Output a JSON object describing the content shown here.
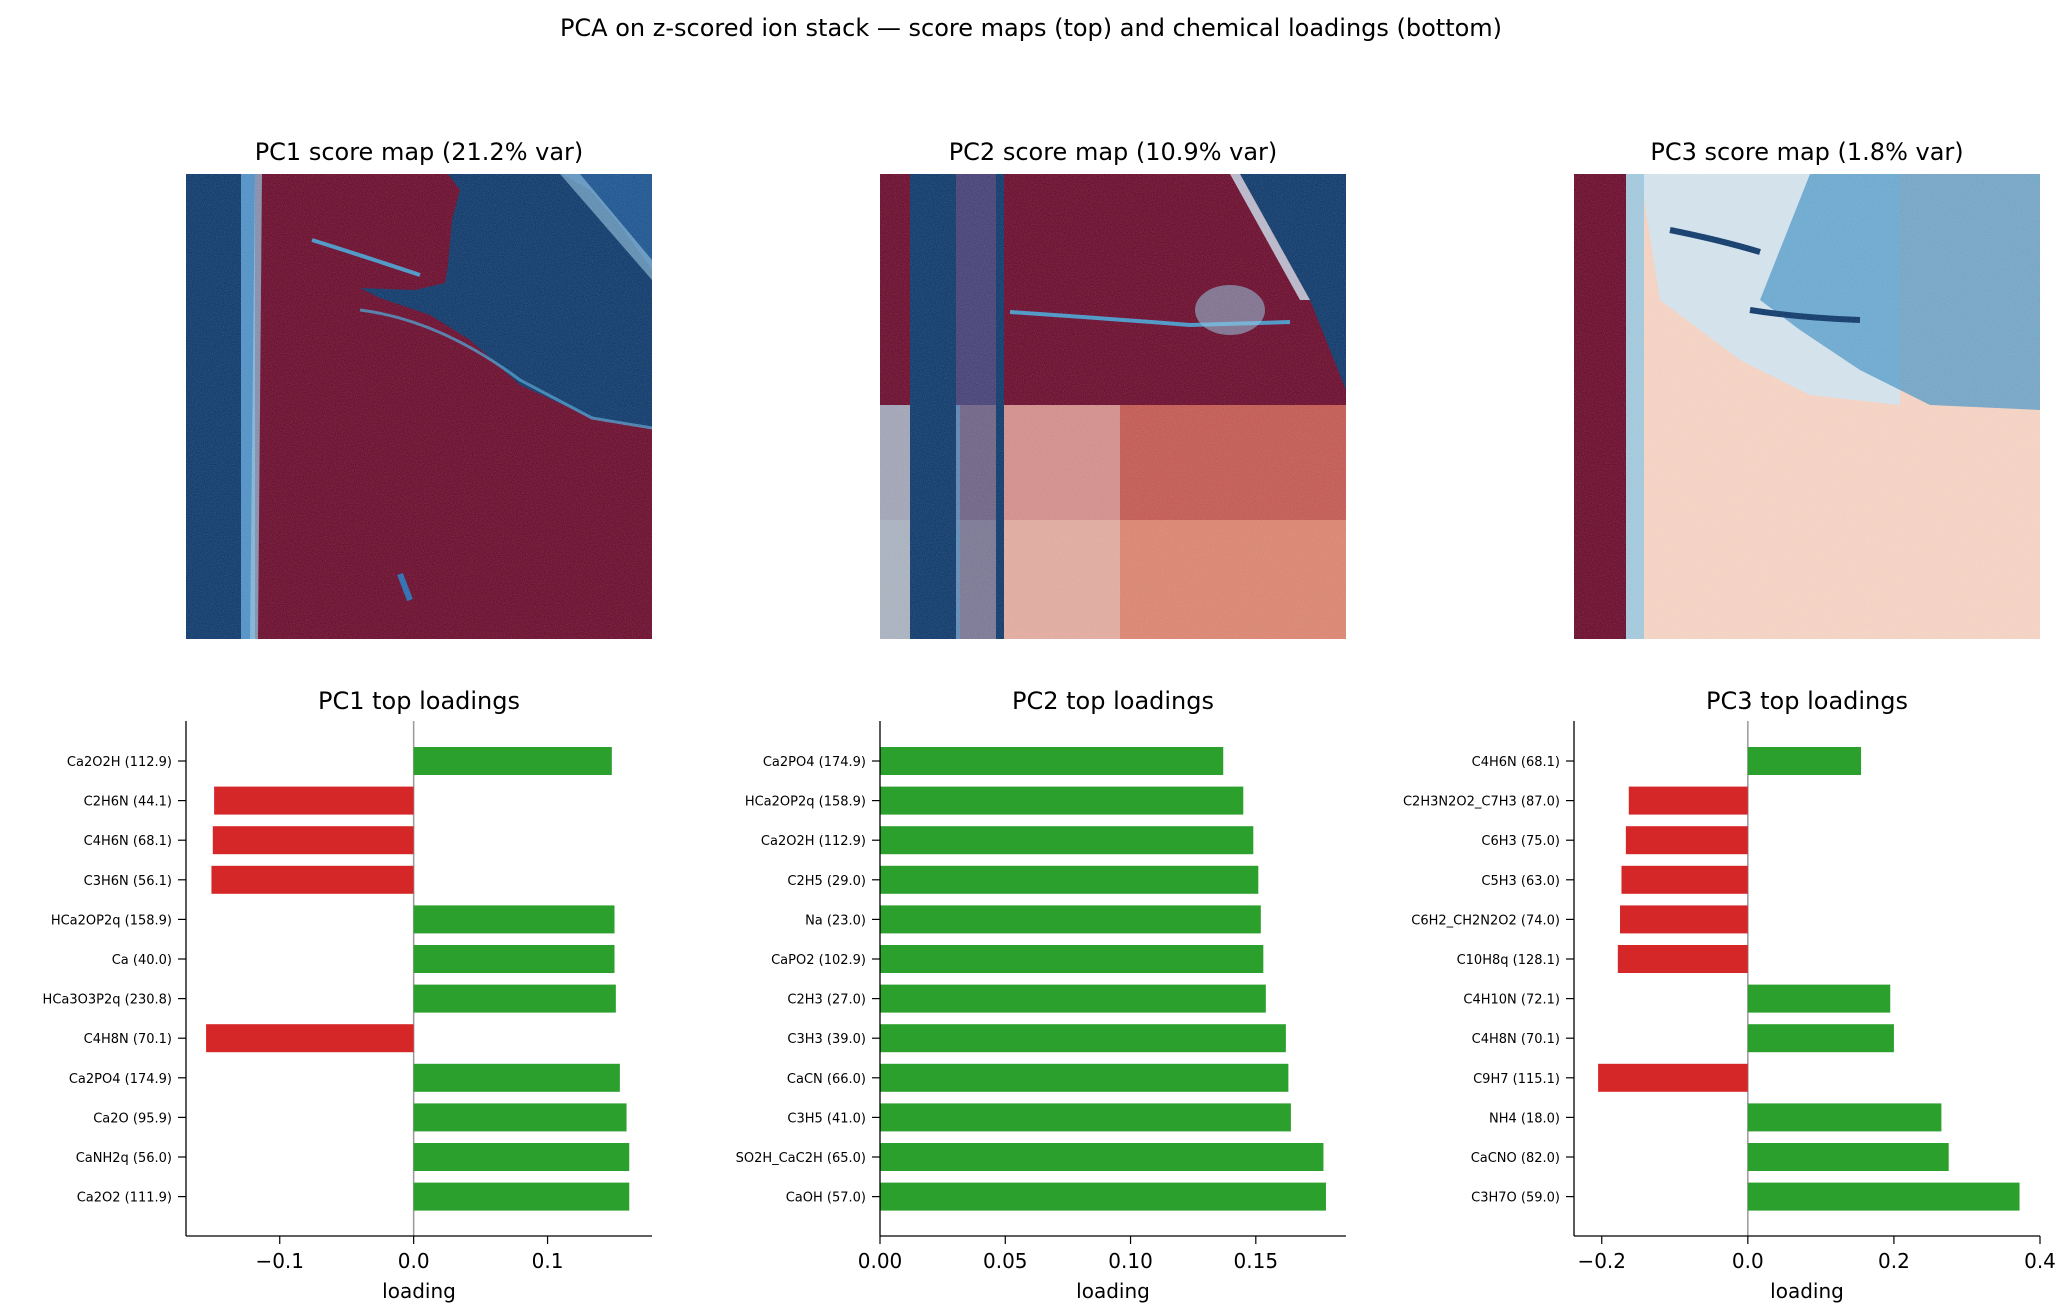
{
  "figure": {
    "suptitle": "PCA on z-scored ion stack — score maps (top) and chemical loadings (bottom)"
  },
  "colors": {
    "positive": "#2ca02c",
    "negative": "#d62728",
    "map_red": "#67001f",
    "map_blue": "#053061",
    "map_light": "#f7f7f7"
  },
  "score_maps": [
    {
      "title": "PC1 score map  (21.2% var)",
      "colormap": "RdBu"
    },
    {
      "title": "PC2 score map  (10.9% var)",
      "colormap": "RdBu"
    },
    {
      "title": "PC3 score map  (1.8% var)",
      "colormap": "RdBu"
    }
  ],
  "chart_data": [
    {
      "type": "bar",
      "orientation": "horizontal",
      "title": "PC1 top loadings",
      "xlabel": "loading",
      "xlim": [
        -0.17,
        0.178
      ],
      "xticks": [
        -0.1,
        0.0,
        0.1
      ],
      "xtick_labels": [
        "−0.1",
        "0.0",
        "0.1"
      ],
      "categories": [
        "Ca2O2H (112.9)",
        "C2H6N (44.1)",
        "C4H6N (68.1)",
        "C3H6N (56.1)",
        "HCa2OP2q (158.9)",
        "Ca (40.0)",
        "HCa3O3P2q (230.8)",
        "C4H8N (70.1)",
        "Ca2PO4 (174.9)",
        "Ca2O (95.9)",
        "CaNH2q (56.0)",
        "Ca2O2 (111.9)"
      ],
      "values": [
        0.148,
        -0.149,
        -0.15,
        -0.151,
        0.15,
        0.15,
        0.151,
        -0.155,
        0.154,
        0.159,
        0.161,
        0.161
      ]
    },
    {
      "type": "bar",
      "orientation": "horizontal",
      "title": "PC2 top loadings",
      "xlabel": "loading",
      "xlim": [
        0.0,
        0.186
      ],
      "xticks": [
        0.0,
        0.05,
        0.1,
        0.15
      ],
      "xtick_labels": [
        "0.00",
        "0.05",
        "0.10",
        "0.15"
      ],
      "categories": [
        "Ca2PO4 (174.9)",
        "HCa2OP2q (158.9)",
        "Ca2O2H (112.9)",
        "C2H5 (29.0)",
        "Na (23.0)",
        "CaPO2 (102.9)",
        "C2H3 (27.0)",
        "C3H3 (39.0)",
        "CaCN (66.0)",
        "C3H5 (41.0)",
        "SO2H_CaC2H (65.0)",
        "CaOH (57.0)"
      ],
      "values": [
        0.137,
        0.145,
        0.149,
        0.151,
        0.152,
        0.153,
        0.154,
        0.162,
        0.163,
        0.164,
        0.177,
        0.178
      ]
    },
    {
      "type": "bar",
      "orientation": "horizontal",
      "title": "PC3 top loadings",
      "xlabel": "loading",
      "xlim": [
        -0.238,
        0.4
      ],
      "xticks": [
        -0.2,
        0.0,
        0.2,
        0.4
      ],
      "xtick_labels": [
        "−0.2",
        "0.0",
        "0.2",
        "0.4"
      ],
      "categories": [
        "C4H6N (68.1)",
        "C2H3N2O2_C7H3 (87.0)",
        "C6H3 (75.0)",
        "C5H3 (63.0)",
        "C6H2_CH2N2O2 (74.0)",
        "C10H8q (128.1)",
        "C4H10N (72.1)",
        "C4H8N (70.1)",
        "C9H7 (115.1)",
        "NH4 (18.0)",
        "CaCNO (82.0)",
        "C3H7O (59.0)"
      ],
      "values": [
        0.155,
        -0.163,
        -0.167,
        -0.173,
        -0.175,
        -0.178,
        0.195,
        0.2,
        -0.205,
        0.265,
        0.275,
        0.372
      ]
    }
  ]
}
